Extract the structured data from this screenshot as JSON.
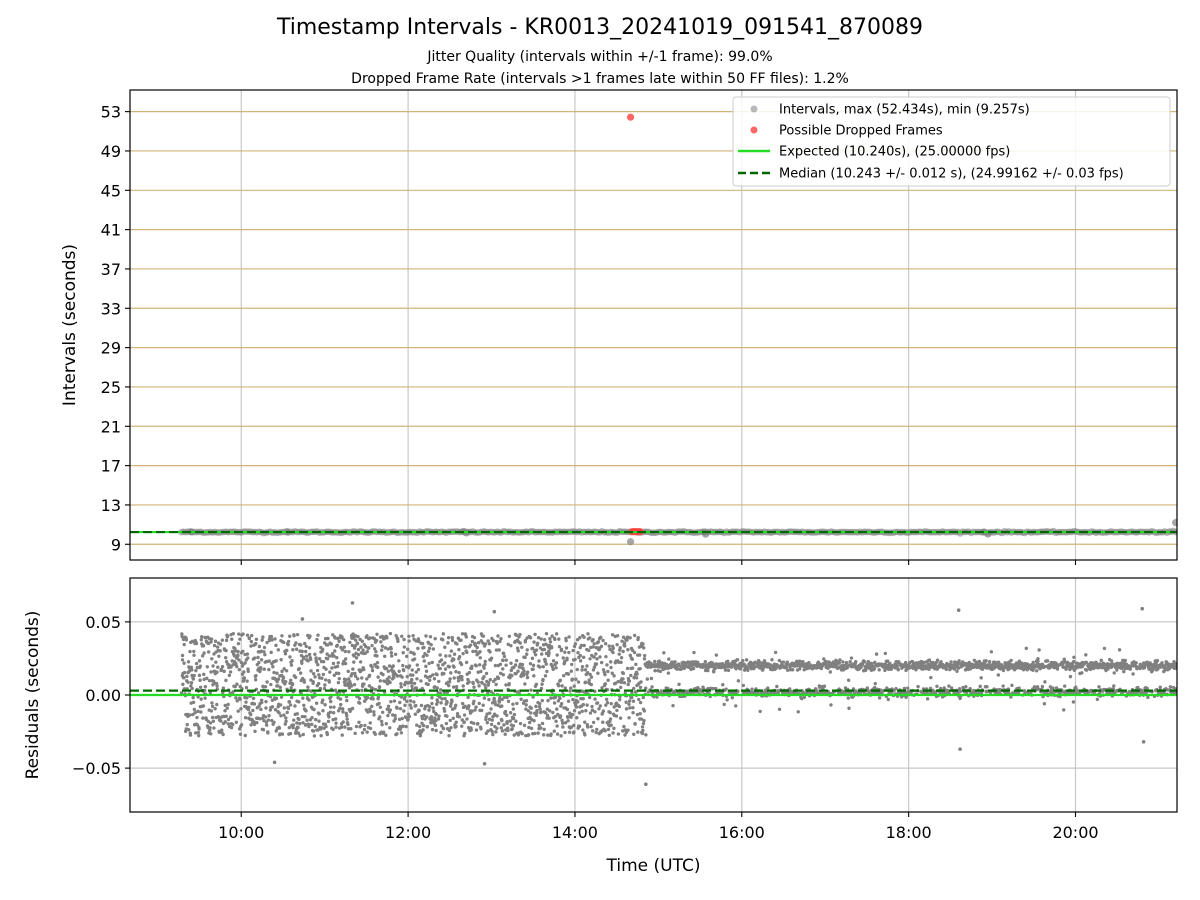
{
  "title": "Timestamp Intervals - KR0013_20241019_091541_870089",
  "subtitle_lines": [
    "Jitter Quality (intervals within +/-1 frame): 99.0%",
    "Dropped Frame Rate (intervals >1 frames late within 50 FF files): 1.2%"
  ],
  "colors": {
    "intervals": "#808080",
    "dropped": "#ff4040",
    "expected": "#22dd22",
    "median": "#006600",
    "h_grid_top": "#d2b478",
    "grid": "#c8c8c8"
  },
  "chart_data": [
    {
      "type": "scatter",
      "ylabel": "Intervals (seconds)",
      "xlim": [
        "08:40",
        "21:13"
      ],
      "ylim": [
        7.4,
        55.2
      ],
      "y_ticks": [
        9,
        13,
        17,
        21,
        25,
        29,
        33,
        37,
        41,
        45,
        49,
        53
      ],
      "x_ticks": [
        "10:00",
        "12:00",
        "14:00",
        "16:00",
        "18:00",
        "20:00"
      ],
      "grid": true,
      "legend_position": "top-right",
      "legend": [
        "Intervals, max (52.434s), min (9.257s)",
        "Possible Dropped Frames",
        "Expected (10.240s), (25.00000 fps)",
        "Median (10.243 +/- 0.012 s), (24.99162 +/- 0.03 fps)"
      ],
      "series": [
        {
          "name": "Intervals, max (52.434s), min (9.257s)",
          "kind": "points",
          "x_range": [
            "09:17",
            "21:13"
          ],
          "typical_y": 10.24,
          "outliers": [
            {
              "x": "09:24",
              "y": 10.27
            },
            {
              "x": "10:33",
              "y": 10.29
            },
            {
              "x": "12:40",
              "y": 10.3
            },
            {
              "x": "12:42",
              "y": 10.15
            },
            {
              "x": "14:40",
              "y": 9.257
            },
            {
              "x": "15:33",
              "y": 10.25
            },
            {
              "x": "15:34",
              "y": 10.02
            },
            {
              "x": "18:54",
              "y": 10.24
            },
            {
              "x": "18:57",
              "y": 10.03
            },
            {
              "x": "21:12",
              "y": 11.2
            }
          ]
        },
        {
          "name": "Possible Dropped Frames",
          "kind": "points",
          "points": [
            {
              "x": "14:40",
              "y": 52.434
            },
            {
              "x": "14:41",
              "y": 10.28
            },
            {
              "x": "14:42",
              "y": 10.28
            },
            {
              "x": "14:43",
              "y": 10.28
            },
            {
              "x": "14:44",
              "y": 10.28
            },
            {
              "x": "14:45",
              "y": 10.28
            },
            {
              "x": "14:46",
              "y": 10.28
            },
            {
              "x": "14:47",
              "y": 10.28
            }
          ]
        },
        {
          "name": "Expected (10.240s), (25.00000 fps)",
          "kind": "hline",
          "y": 10.24
        },
        {
          "name": "Median (10.243 +/- 0.012 s), (24.99162 +/- 0.03 fps)",
          "kind": "hline-dashed",
          "y": 10.243
        }
      ]
    },
    {
      "type": "scatter",
      "xlabel": "Time (UTC)",
      "ylabel": "Residuals (seconds)",
      "xlim": [
        "08:40",
        "21:13"
      ],
      "ylim": [
        -0.08,
        0.08
      ],
      "y_ticks": [
        0.05,
        0.0,
        -0.05
      ],
      "y_tick_labels": [
        "0.05",
        "0.00",
        "−0.05"
      ],
      "x_ticks": [
        "10:00",
        "12:00",
        "14:00",
        "16:00",
        "18:00",
        "20:00"
      ],
      "x_tick_labels": [
        "10:00",
        "12:00",
        "14:00",
        "16:00",
        "18:00",
        "20:00"
      ],
      "grid": true,
      "series": [
        {
          "name": "Residuals",
          "kind": "points",
          "x_range": [
            "09:17",
            "21:13"
          ],
          "segments": [
            {
              "x_range": [
                "09:17",
                "14:51"
              ],
              "spread": [
                -0.028,
                0.042
              ]
            },
            {
              "x_range": [
                "14:51",
                "21:13"
              ],
              "bands": [
                0.02,
                0.002
              ]
            }
          ],
          "outliers": [
            {
              "x": "11:20",
              "y": 0.063
            },
            {
              "x": "10:44",
              "y": 0.052
            },
            {
              "x": "13:02",
              "y": 0.057
            },
            {
              "x": "18:36",
              "y": 0.058
            },
            {
              "x": "20:48",
              "y": 0.059
            },
            {
              "x": "14:51",
              "y": -0.061
            },
            {
              "x": "12:55",
              "y": -0.047
            },
            {
              "x": "18:37",
              "y": -0.037
            },
            {
              "x": "20:49",
              "y": -0.032
            },
            {
              "x": "10:24",
              "y": -0.046
            }
          ]
        },
        {
          "name": "Expected",
          "kind": "hline",
          "y": 0.0
        },
        {
          "name": "Median",
          "kind": "hline-dashed",
          "y": 0.003
        }
      ]
    }
  ]
}
